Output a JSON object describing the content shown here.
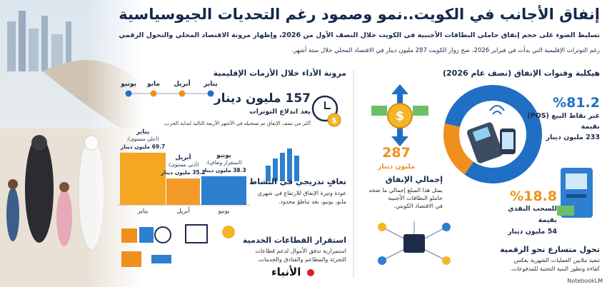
{
  "header": {
    "title": "إنفاق الأجانب في الكويت..نمو وصمود رغم التحديات الجيوسياسية",
    "subtitle": [
      "تسليط الضوء على حجم إنفاق حاملي البطاقات الأجنبية في الكويت خلال النصف الأول من 2026، وإظهار مرونة الاقتصاد المحلي والتحول الرقمي",
      "رغم التوترات الإقليمية التي بدأت في فبراير 2026، ضخ زوار الكويت 287 مليون دينار في الاقتصاد المحلي خلال ستة أشهر."
    ]
  },
  "spending_structure": {
    "heading": "هيكلية وقنوات الإنفاق (نصف عام 2026)",
    "donut": {
      "type": "pie",
      "values": [
        81.2,
        18.8
      ],
      "value_labels": [
        "%81.2",
        "%18.8"
      ],
      "colors": [
        "#1f6fc5",
        "#f0901c"
      ],
      "labels": [
        "عبر نقاط البيع (POS)",
        "للسحب النقدي"
      ],
      "amount_captions": [
        "بقيمة",
        "بقيمة"
      ],
      "amounts": [
        "233 مليون دينار",
        "54 مليون دينار"
      ]
    }
  },
  "total": {
    "value": "287",
    "unit": "مليون دينار",
    "title": "إجمالي الإنفاق",
    "text": [
      "يمثل هذا المبلغ إجمالي ما ضخه",
      "حاملو البطاقات الأجنبية",
      "في الاقتصاد الكويتي."
    ]
  },
  "digital": {
    "title": "تحول متسارع نحو الرقمية",
    "text": [
      "تنفيذ ملايين العمليات الشهرية يعكس",
      "كفاءة وتطور البنية التحتية للمدفوعات."
    ]
  },
  "resilience": {
    "heading": "مرونة الأداء خلال الأزمات الإقليمية",
    "timeline": {
      "labels": [
        "يناير",
        "أبريل",
        "مايو",
        "يونيو"
      ],
      "colors": [
        "#1f6fc5",
        "#f0901c",
        "#f0901c",
        "#1f6fc5"
      ]
    },
    "highlight": {
      "value": "157 مليون دينار",
      "label": "بعد اندلاع التوترات",
      "text": "أكثر من نصف الإنفاق تم تسجيله في الأشهر الأربعة التالية لبداية الحرب."
    },
    "bar_chart": {
      "type": "bar",
      "categories": [
        "يناير",
        "أبريل",
        "يونيو"
      ],
      "notes": [
        "(أعلى مستوى):",
        "(أدنى مستوى):",
        "(استقرار وتعافٍ):"
      ],
      "values": [
        69.7,
        35.2,
        38.3
      ],
      "value_labels": [
        "69.7 مليون دينار",
        "35.2 مليون دينار",
        "38.3 مليون دينار"
      ],
      "colors": [
        "#f5a623",
        "#f39a2a",
        "#2d7fd0"
      ]
    }
  },
  "recovery": {
    "title": "تعافٍ تدريجي في النشاط",
    "text": [
      "عودة وتيرة الإنفاق للارتفاع في شهري",
      "مايو، يونيو، بعد تباطؤ محدود."
    ]
  },
  "services": {
    "title": "استقرار القطاعات الخدمية",
    "text": [
      "استمرارية تدفق الأموال لدعم قطاعات",
      "التجزئة والمطاعم والفنادق والخدمات."
    ]
  },
  "footer": {
    "logo": "الأنباء",
    "credit": "NotebookLM"
  }
}
